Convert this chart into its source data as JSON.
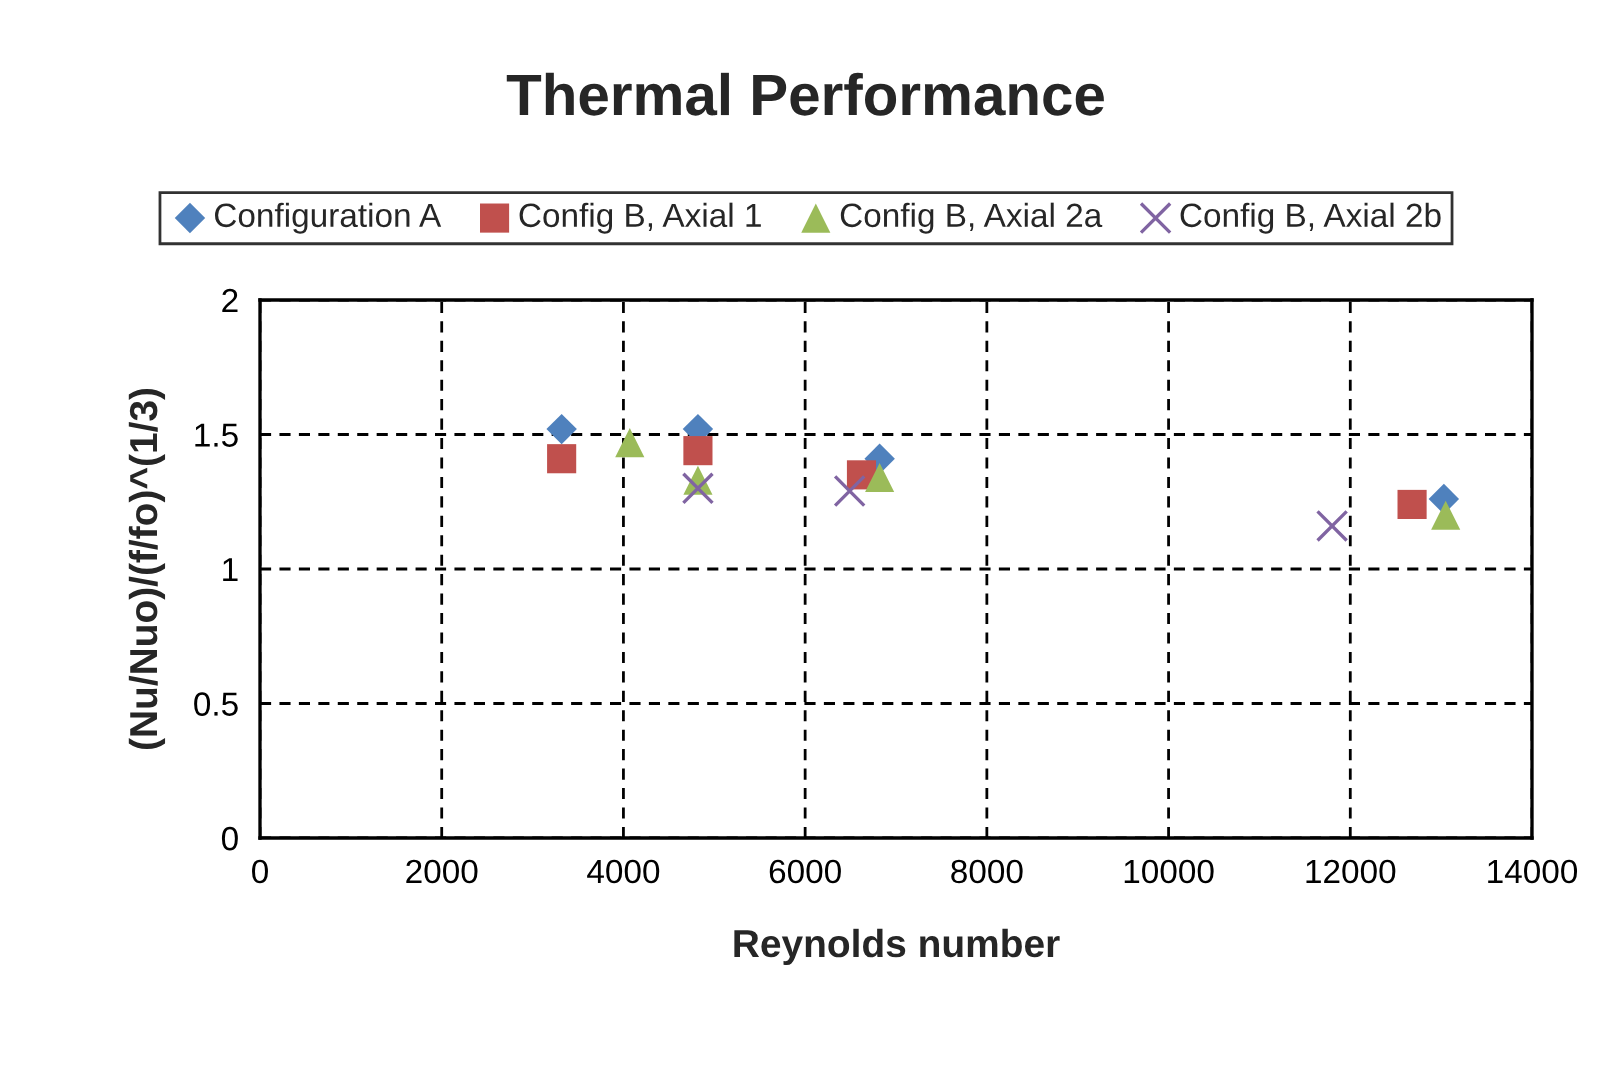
{
  "chart_data": {
    "type": "scatter",
    "title": "Thermal Performance",
    "xlabel": "Reynolds number",
    "ylabel": "(Nu/Nuo)/(f/fo)^(1/3)",
    "xlim": [
      0,
      14000
    ],
    "xticks": [
      0,
      2000,
      4000,
      6000,
      8000,
      10000,
      12000,
      14000
    ],
    "ylim": [
      0,
      2
    ],
    "yticks": [
      0,
      0.5,
      1,
      1.5,
      2
    ],
    "grid": true,
    "legend": "top",
    "series": [
      {
        "name": "Configuration A",
        "color": "#4f81bd",
        "marker": "diamond",
        "x": [
          3320,
          4820,
          6820,
          13030
        ],
        "values": [
          1.52,
          1.52,
          1.41,
          1.26
        ]
      },
      {
        "name": "Config B, Axial 1",
        "color": "#c0504d",
        "marker": "square",
        "x": [
          3320,
          4820,
          6620,
          12680
        ],
        "values": [
          1.41,
          1.44,
          1.35,
          1.24
        ]
      },
      {
        "name": "Config B, Axial 2a",
        "color": "#9bbb59",
        "marker": "triangle",
        "x": [
          4070,
          4820,
          6820,
          13050
        ],
        "values": [
          1.47,
          1.33,
          1.34,
          1.2
        ]
      },
      {
        "name": "Config B, Axial 2b",
        "color": "#8064a2",
        "marker": "cross",
        "x": [
          4820,
          6490,
          11800
        ],
        "values": [
          1.3,
          1.29,
          1.16
        ]
      }
    ]
  }
}
